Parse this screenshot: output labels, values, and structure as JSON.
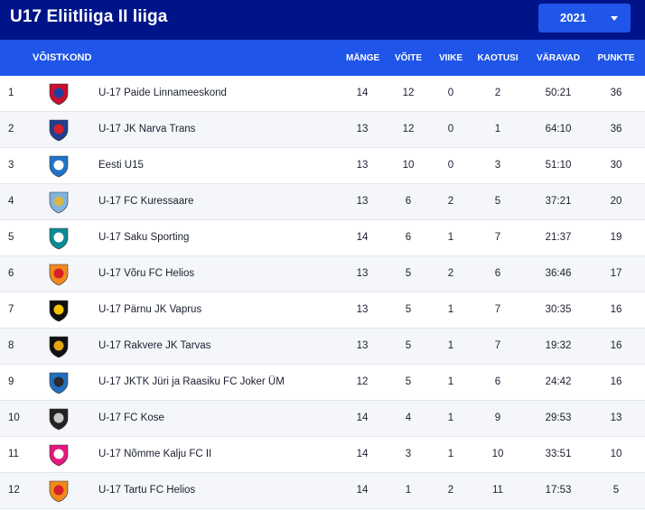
{
  "header": {
    "title": "U17 Eliitliiga II liiga",
    "season": "2021"
  },
  "columns": {
    "team": "VÕISTKOND",
    "played": "MÄNGE",
    "wins": "VÕITE",
    "draws": "VIIKE",
    "losses": "KAOTUSI",
    "goals": "VÄRAVAD",
    "points": "PUNKTE"
  },
  "teams": [
    {
      "pos": "1",
      "name": "U-17 Paide Linnameeskond",
      "played": "14",
      "wins": "12",
      "draws": "0",
      "losses": "2",
      "goals": "50:21",
      "points": "36",
      "logo": "paide-crest-icon",
      "colors": [
        "#c8102e",
        "#1d3f9e"
      ]
    },
    {
      "pos": "2",
      "name": "U-17 JK Narva Trans",
      "played": "13",
      "wins": "12",
      "draws": "0",
      "losses": "1",
      "goals": "64:10",
      "points": "36",
      "logo": "narva-trans-crest-icon",
      "colors": [
        "#1f3f8f",
        "#d6202a"
      ]
    },
    {
      "pos": "3",
      "name": "Eesti U15",
      "played": "13",
      "wins": "10",
      "draws": "0",
      "losses": "3",
      "goals": "51:10",
      "points": "30",
      "logo": "estonia-crest-icon",
      "colors": [
        "#1f73c8",
        "#ffffff"
      ]
    },
    {
      "pos": "4",
      "name": "U-17 FC Kuressaare",
      "played": "13",
      "wins": "6",
      "draws": "2",
      "losses": "5",
      "goals": "37:21",
      "points": "20",
      "logo": "kuressaare-crest-icon",
      "colors": [
        "#7fb3e0",
        "#d8b54a"
      ]
    },
    {
      "pos": "5",
      "name": "U-17 Saku Sporting",
      "played": "14",
      "wins": "6",
      "draws": "1",
      "losses": "7",
      "goals": "21:37",
      "points": "19",
      "logo": "saku-crest-icon",
      "colors": [
        "#0a8c96",
        "#ffffff"
      ]
    },
    {
      "pos": "6",
      "name": "U-17 Võru FC Helios",
      "played": "13",
      "wins": "5",
      "draws": "2",
      "losses": "6",
      "goals": "36:46",
      "points": "17",
      "logo": "voru-helios-crest-icon",
      "colors": [
        "#f08a1c",
        "#d6202a"
      ]
    },
    {
      "pos": "7",
      "name": "U-17 Pärnu JK Vaprus",
      "played": "13",
      "wins": "5",
      "draws": "1",
      "losses": "7",
      "goals": "30:35",
      "points": "16",
      "logo": "vaprus-crest-icon",
      "colors": [
        "#111111",
        "#f2c500"
      ]
    },
    {
      "pos": "8",
      "name": "U-17 Rakvere JK Tarvas",
      "played": "13",
      "wins": "5",
      "draws": "1",
      "losses": "7",
      "goals": "19:32",
      "points": "16",
      "logo": "tarvas-crest-icon",
      "colors": [
        "#111111",
        "#e3a512"
      ]
    },
    {
      "pos": "9",
      "name": "U-17 JKTK Jüri ja Raasiku FC Joker ÜM",
      "played": "12",
      "wins": "5",
      "draws": "1",
      "losses": "6",
      "goals": "24:42",
      "points": "16",
      "logo": "joker-crest-icon",
      "colors": [
        "#1f6fbf",
        "#2a2a2a"
      ]
    },
    {
      "pos": "10",
      "name": "U-17 FC Kose",
      "played": "14",
      "wins": "4",
      "draws": "1",
      "losses": "9",
      "goals": "29:53",
      "points": "13",
      "logo": "kose-crest-icon",
      "colors": [
        "#222222",
        "#c8c8c8"
      ]
    },
    {
      "pos": "11",
      "name": "U-17 Nõmme Kalju FC II",
      "played": "14",
      "wins": "3",
      "draws": "1",
      "losses": "10",
      "goals": "33:51",
      "points": "10",
      "logo": "kalju-crest-icon",
      "colors": [
        "#e5177e",
        "#ffffff"
      ]
    },
    {
      "pos": "12",
      "name": "U-17 Tartu FC Helios",
      "played": "14",
      "wins": "1",
      "draws": "2",
      "losses": "11",
      "goals": "17:53",
      "points": "5",
      "logo": "tartu-helios-crest-icon",
      "colors": [
        "#f08a1c",
        "#d6202a"
      ]
    }
  ]
}
